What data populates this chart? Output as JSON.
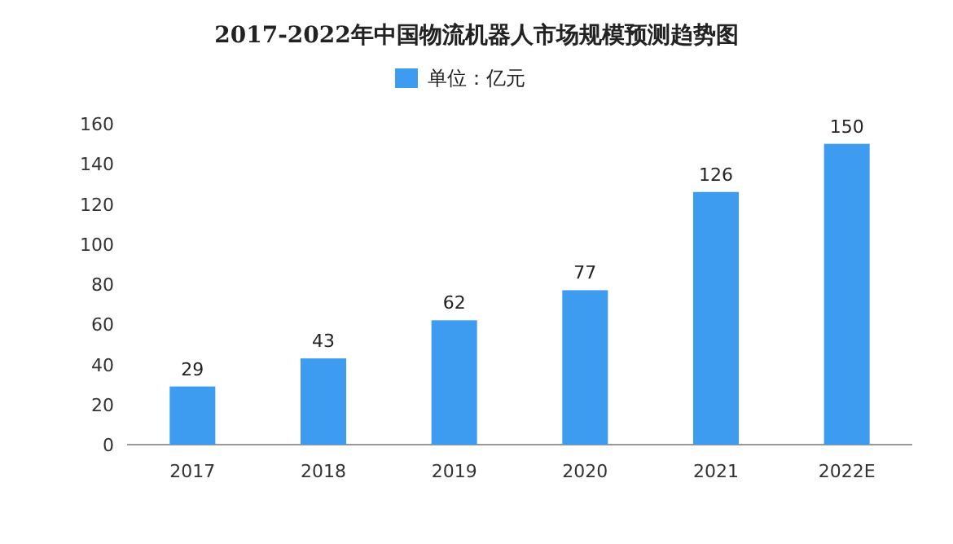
{
  "chart_data": {
    "type": "bar",
    "title": "2017-2022年中国物流机器人市场规模预测趋势图",
    "categories": [
      "2017",
      "2018",
      "2019",
      "2020",
      "2021",
      "2022E"
    ],
    "series": [
      {
        "name": "单位：亿元",
        "color": "#3d9cf0",
        "values": [
          29,
          43,
          62,
          77,
          126,
          150
        ]
      }
    ],
    "ylim": [
      0,
      160
    ],
    "yticks": [
      0,
      20,
      40,
      60,
      80,
      100,
      120,
      140,
      160
    ],
    "data_labels": true,
    "legend": "top"
  }
}
